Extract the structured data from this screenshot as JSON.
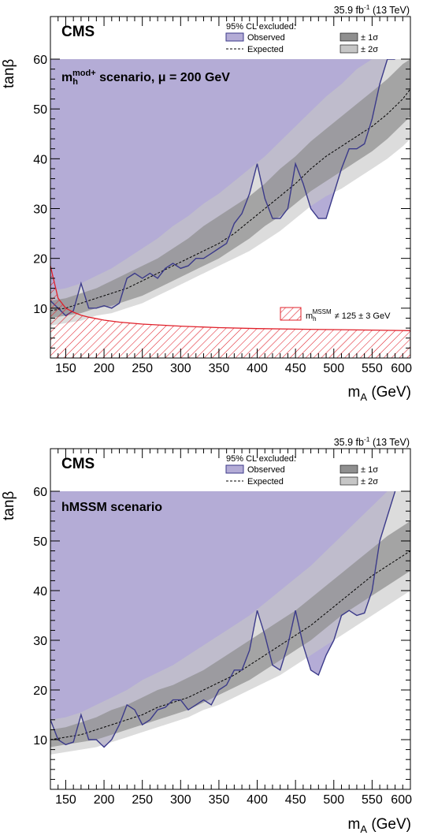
{
  "chart_data": [
    {
      "type": "area",
      "experiment": "CMS",
      "lumi_label": "35.9 fb",
      "lumi_exp": "-1",
      "lumi_energy": " (13 TeV)",
      "scenario_main": "m",
      "scenario_sub": "h",
      "scenario_sup": "mod+",
      "scenario_rest": " scenario, μ = 200 GeV",
      "xlabel": "m",
      "xlabel_sub": "A",
      "xlabel_unit": " (GeV)",
      "ylabel": "tanβ",
      "xlim": [
        130,
        600
      ],
      "ylim": [
        0,
        60
      ],
      "x_ticks": [
        "150",
        "200",
        "250",
        "300",
        "350",
        "400",
        "450",
        "500",
        "550",
        "600"
      ],
      "y_ticks": [
        "10",
        "20",
        "30",
        "40",
        "50",
        "60"
      ],
      "legend_title": "95% CL excluded:",
      "legend_observed": "Observed",
      "legend_expected": "Expected",
      "legend_1s": "± 1σ",
      "legend_2s": "± 2σ",
      "hatch_label_m": "m",
      "hatch_label_sub": "h",
      "hatch_label_sup": "MSSM",
      "hatch_label_rest": "≠ 125 ± 3 GeV",
      "colors": {
        "observed_fill": "#b4acd6",
        "observed_line": "#3b3a8a",
        "band_2s": "#c6c6c6",
        "band_1s": "#8f8f8f",
        "hatch": "#e0202a"
      },
      "x": [
        130,
        150,
        170,
        190,
        210,
        230,
        250,
        270,
        290,
        310,
        330,
        350,
        370,
        390,
        410,
        430,
        450,
        470,
        490,
        510,
        530,
        550,
        570,
        590,
        600
      ],
      "expected": [
        9.5,
        10,
        11,
        12,
        13,
        14,
        15.5,
        17,
        18.5,
        20,
        21.5,
        23,
        25,
        27.5,
        30,
        32.5,
        35,
        38,
        40.5,
        42.5,
        44.5,
        46.5,
        49,
        52,
        54
      ],
      "band_1s_low": [
        8,
        8.5,
        9,
        10,
        10.5,
        11.5,
        12.5,
        14,
        15.5,
        17,
        18.5,
        20,
        22,
        24,
        26.5,
        28.5,
        31,
        33.5,
        35.5,
        37.5,
        39.5,
        41.5,
        44,
        47,
        48.5
      ],
      "band_1s_high": [
        11.5,
        12,
        13,
        14,
        15.5,
        17,
        18.5,
        20,
        22,
        24,
        26.5,
        28.5,
        30.5,
        32.5,
        35,
        38,
        40.5,
        43.5,
        46,
        48.5,
        51,
        53.5,
        56,
        59,
        60
      ],
      "band_2s_low": [
        6.5,
        7,
        7.5,
        8.5,
        9,
        10,
        11,
        12.5,
        14,
        15.5,
        17,
        18.5,
        20,
        21.5,
        23.5,
        25.5,
        28,
        30.5,
        32.5,
        34,
        36,
        38,
        40,
        42.5,
        44
      ],
      "band_2s_high": [
        13.5,
        14,
        15,
        16.5,
        18,
        20,
        22,
        24,
        26.5,
        28.5,
        31,
        33,
        35.5,
        38,
        40.5,
        43.5,
        46.5,
        49.5,
        52.5,
        55,
        58,
        60,
        60,
        60,
        60
      ],
      "observed": {
        "x": [
          130,
          140,
          150,
          160,
          170,
          180,
          190,
          200,
          210,
          220,
          230,
          240,
          250,
          260,
          270,
          280,
          290,
          300,
          310,
          320,
          330,
          340,
          350,
          360,
          370,
          380,
          390,
          400,
          410,
          420,
          430,
          440,
          450,
          460,
          470,
          480,
          490,
          500,
          510,
          520,
          530,
          540,
          550,
          560,
          570,
          580
        ],
        "y": [
          11.5,
          10,
          8.5,
          9.5,
          15,
          10,
          10,
          10.5,
          10,
          11,
          16,
          17,
          16,
          17,
          16,
          18,
          19,
          18,
          18.5,
          20,
          20,
          21,
          22,
          23,
          27,
          29,
          33,
          39,
          32,
          28,
          28,
          30,
          39,
          35,
          30,
          28,
          28,
          33,
          38,
          42,
          42,
          43,
          48,
          55,
          60,
          60
        ]
      },
      "hatch_boundary": {
        "x": [
          130,
          140,
          150,
          160,
          170,
          180,
          200,
          220,
          250,
          300,
          350,
          400,
          450,
          500,
          550,
          600
        ],
        "y": [
          18.5,
          12,
          10,
          9.2,
          8.6,
          8.2,
          7.6,
          7.2,
          6.8,
          6.4,
          6.1,
          5.9,
          5.8,
          5.7,
          5.6,
          5.5
        ]
      }
    },
    {
      "type": "area",
      "experiment": "CMS",
      "lumi_label": "35.9 fb",
      "lumi_exp": "-1",
      "lumi_energy": " (13 TeV)",
      "scenario_full": "hMSSM scenario",
      "xlabel": "m",
      "xlabel_sub": "A",
      "xlabel_unit": " (GeV)",
      "ylabel": "tanβ",
      "xlim": [
        130,
        600
      ],
      "ylim": [
        0,
        60
      ],
      "x_ticks": [
        "150",
        "200",
        "250",
        "300",
        "350",
        "400",
        "450",
        "500",
        "550",
        "600"
      ],
      "y_ticks": [
        "10",
        "20",
        "30",
        "40",
        "50",
        "60"
      ],
      "legend_title": "95% CL excluded:",
      "legend_observed": "Observed",
      "legend_expected": "Expected",
      "legend_1s": "± 1σ",
      "legend_2s": "± 2σ",
      "colors": {
        "observed_fill": "#b4acd6",
        "observed_line": "#3b3a8a",
        "band_2s": "#c6c6c6",
        "band_1s": "#8f8f8f"
      },
      "x": [
        130,
        150,
        170,
        190,
        210,
        230,
        250,
        270,
        290,
        310,
        330,
        350,
        370,
        390,
        410,
        430,
        450,
        470,
        490,
        510,
        530,
        550,
        570,
        590,
        600
      ],
      "expected": [
        10,
        10.5,
        11,
        12,
        13,
        14,
        15,
        16.5,
        17.5,
        18.5,
        20,
        21.5,
        23,
        25,
        27,
        29,
        31,
        33,
        35.5,
        38,
        40.5,
        43,
        45,
        47,
        48
      ],
      "band_1s_low": [
        8.5,
        9,
        9.5,
        10,
        11,
        12,
        13,
        14,
        15,
        16,
        17.5,
        19,
        20.5,
        22,
        24,
        26,
        28,
        30,
        32.5,
        35,
        37,
        39,
        41,
        43,
        44
      ],
      "band_1s_high": [
        12,
        12.5,
        13.5,
        14.5,
        16,
        17,
        18.5,
        20,
        21,
        22.5,
        24,
        26,
        28,
        30,
        32,
        34,
        36,
        38.5,
        41,
        43.5,
        46,
        48.5,
        51,
        53,
        54
      ],
      "band_2s_low": [
        7,
        7.5,
        8,
        8.5,
        9.5,
        10.5,
        11.5,
        12.5,
        13.5,
        14.5,
        16,
        17,
        18.5,
        20,
        21.5,
        23,
        25,
        27,
        29,
        31,
        33,
        35,
        37,
        39,
        40
      ],
      "band_2s_high": [
        14,
        14.5,
        15.5,
        17,
        18.5,
        20,
        22,
        23.5,
        25,
        27,
        29,
        31,
        33,
        35,
        37.5,
        40,
        42.5,
        45,
        48,
        51,
        54,
        57,
        60,
        60,
        60
      ],
      "observed": {
        "x": [
          130,
          140,
          150,
          160,
          170,
          180,
          190,
          200,
          210,
          220,
          230,
          240,
          250,
          260,
          270,
          280,
          290,
          300,
          310,
          320,
          330,
          340,
          350,
          360,
          370,
          380,
          390,
          400,
          410,
          420,
          430,
          440,
          450,
          460,
          470,
          480,
          490,
          500,
          510,
          520,
          530,
          540,
          550,
          560,
          570,
          580
        ],
        "y": [
          14,
          10,
          9,
          9.5,
          15,
          10,
          10,
          8.5,
          10,
          13,
          17,
          16,
          13,
          14,
          16,
          16.5,
          18,
          18,
          16,
          17,
          18,
          17,
          20,
          21,
          24,
          24,
          28,
          36,
          31,
          25,
          24,
          29,
          36,
          29,
          24,
          23,
          27,
          30,
          35,
          36,
          35,
          35.5,
          40,
          50,
          55,
          60
        ]
      }
    }
  ]
}
